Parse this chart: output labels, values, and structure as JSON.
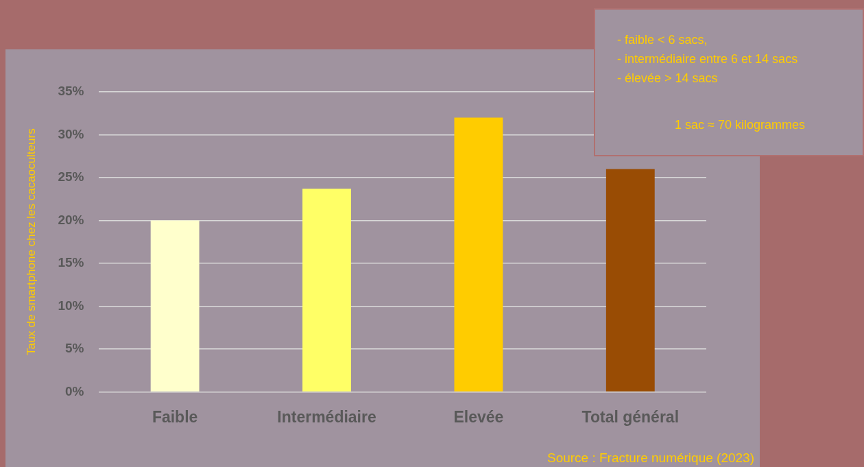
{
  "chart_data": {
    "type": "bar",
    "ylabel": "Taux de smartphone chez les cacaoculteurs",
    "categories": [
      "Faible",
      "Intermédiaire",
      "Elevée",
      "Total général"
    ],
    "values": [
      20,
      23.7,
      32,
      26
    ],
    "colors": [
      "#ffffcc",
      "#ffff66",
      "#ffcc00",
      "#994c04"
    ],
    "ylim": [
      0,
      35
    ],
    "yticks": [
      {
        "value": 0,
        "label": "0%"
      },
      {
        "value": 5,
        "label": "5%"
      },
      {
        "value": 10,
        "label": "10%"
      },
      {
        "value": 15,
        "label": "15%"
      },
      {
        "value": 20,
        "label": "20%"
      },
      {
        "value": 25,
        "label": "25%"
      },
      {
        "value": 30,
        "label": "30%"
      },
      {
        "value": 35,
        "label": "35%"
      }
    ],
    "grid": "y",
    "legend": false,
    "annotations": [
      "- faible < 6 sacs,",
      "- intermédiaire entre 6 et 14 sacs",
      "- élevée > 14 sacs",
      "1 sac ≈ 70 kilogrammes",
      "Source : Fracture numérique (2023)"
    ]
  }
}
